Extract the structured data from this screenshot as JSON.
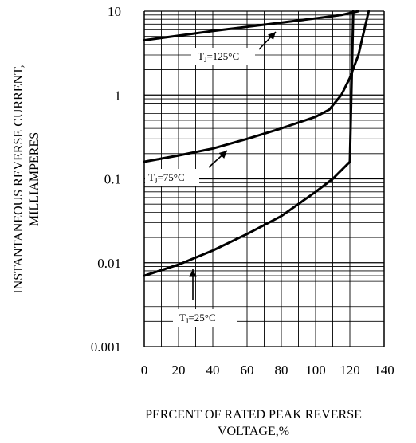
{
  "chart_data": {
    "type": "line",
    "xlabel_lines": [
      "PERCENT OF RATED PEAK REVERSE",
      "VOLTAGE,%"
    ],
    "ylabel_lines": [
      "INSTANTANEOUS REVERSE CURRENT,",
      "MILLIAMPERES"
    ],
    "xlim": [
      0,
      140
    ],
    "ylim": [
      0.001,
      10
    ],
    "y_scale": "log",
    "grid": true,
    "x_ticks": [
      "0",
      "20",
      "40",
      "60",
      "80",
      "100",
      "120",
      "140"
    ],
    "x_tick_values": [
      0,
      20,
      40,
      60,
      80,
      100,
      120,
      140
    ],
    "y_ticks": [
      "0.001",
      "0.01",
      "0.1",
      "1",
      "10"
    ],
    "y_tick_values": [
      0.001,
      0.01,
      0.1,
      1,
      10
    ],
    "series": [
      {
        "name": "TJ=125°C",
        "label_main": "T",
        "label_sub": "J",
        "label_rest": "=125°C",
        "points": [
          [
            0,
            4.5
          ],
          [
            20,
            5.1
          ],
          [
            40,
            5.8
          ],
          [
            60,
            6.5
          ],
          [
            80,
            7.3
          ],
          [
            100,
            8.2
          ],
          [
            115,
            9.0
          ],
          [
            125,
            10
          ]
        ]
      },
      {
        "name": "TJ=75°C",
        "label_main": "T",
        "label_sub": "J",
        "label_rest": "=75°C",
        "points": [
          [
            0,
            0.16
          ],
          [
            20,
            0.19
          ],
          [
            40,
            0.23
          ],
          [
            60,
            0.3
          ],
          [
            80,
            0.4
          ],
          [
            100,
            0.55
          ],
          [
            108,
            0.67
          ],
          [
            115,
            1.0
          ],
          [
            120,
            1.6
          ],
          [
            125,
            3.0
          ],
          [
            128,
            5.5
          ],
          [
            131,
            10
          ]
        ]
      },
      {
        "name": "TJ=25°C",
        "label_main": "T",
        "label_sub": "J",
        "label_rest": "=25°C",
        "points": [
          [
            0,
            0.007
          ],
          [
            20,
            0.0095
          ],
          [
            40,
            0.014
          ],
          [
            60,
            0.022
          ],
          [
            80,
            0.036
          ],
          [
            100,
            0.07
          ],
          [
            110,
            0.1
          ],
          [
            120,
            0.16
          ],
          [
            122,
            10
          ]
        ]
      }
    ]
  }
}
